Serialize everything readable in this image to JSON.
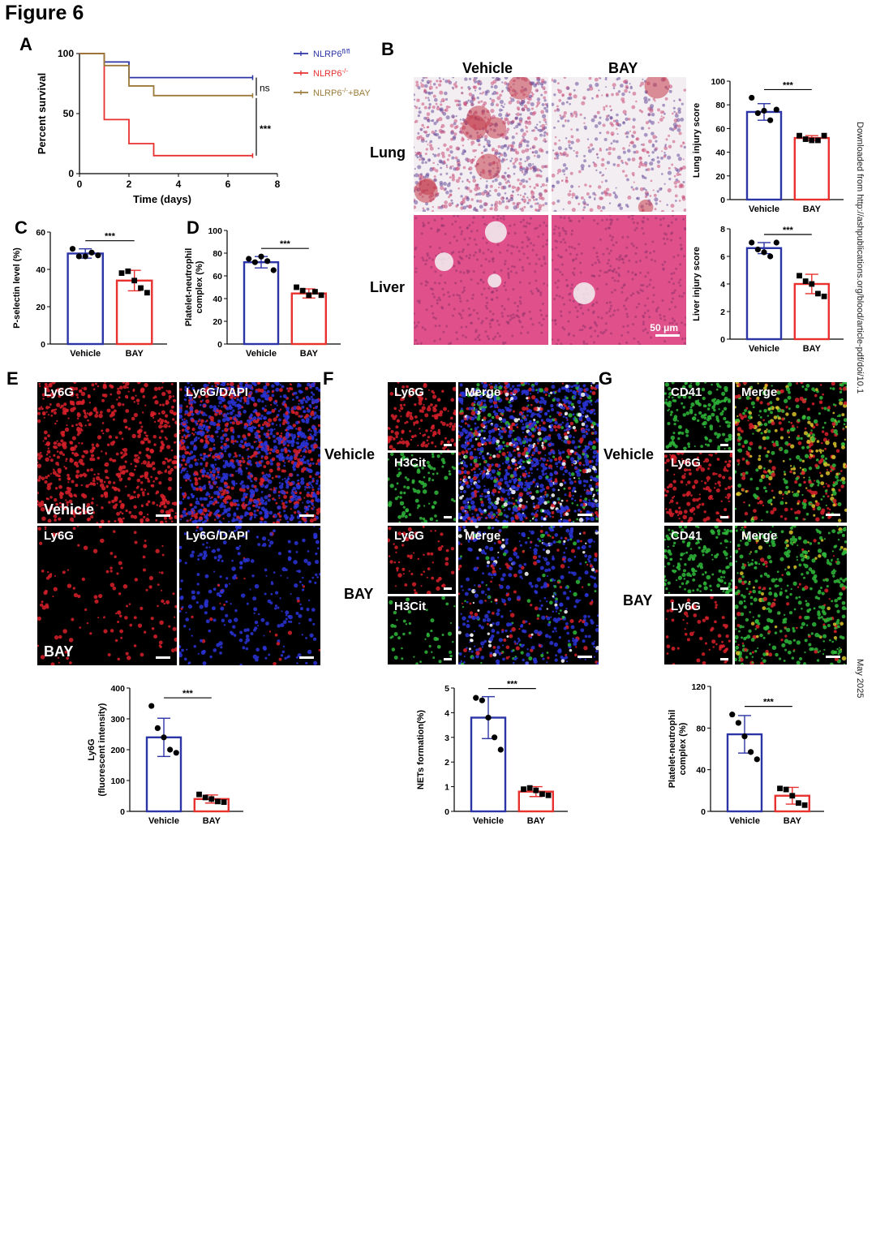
{
  "figure_title": "Figure 6",
  "side_note": "Downloaded from http://ashpublications.org/blood/article-pdf/doi/10.1",
  "side_date": "May 2025",
  "panel_letters": [
    "A",
    "B",
    "C",
    "D",
    "E",
    "F",
    "G"
  ],
  "row_labels": {
    "b_vehicle": "Vehicle",
    "b_bay": "BAY",
    "lung": "Lung",
    "liver": "Liver",
    "f_vehicle": "Vehicle",
    "f_bay": "BAY",
    "g_vehicle": "Vehicle",
    "g_bay": "BAY"
  },
  "micrographs": {
    "scale_label": "50 μm",
    "E": [
      {
        "tl": "Ly6G",
        "bl": "Vehicle"
      },
      {
        "tl": "Ly6G/DAPI"
      },
      {
        "tl": "Ly6G",
        "bl": "BAY"
      },
      {
        "tl": "Ly6G/DAPI"
      }
    ],
    "F": [
      "Ly6G",
      "H3Cit",
      "Merge",
      "Ly6G",
      "H3Cit",
      "Merge"
    ],
    "G": [
      "CD41",
      "Ly6G",
      "Merge",
      "CD41",
      "Ly6G",
      "Merge"
    ]
  },
  "colors": {
    "blue": "#2b35a6",
    "red": "#e8312f",
    "brown": "#9b7a3a",
    "ly6g": "#d8202a",
    "dapi": "#2a34d8",
    "green": "#2fb83a",
    "yellow": "#d9c32a"
  },
  "chart_data": [
    {
      "panel": "A",
      "type": "line",
      "xlabel": "Time (days)",
      "ylabel": "Percent survival",
      "xlim": [
        0,
        8
      ],
      "ylim": [
        0,
        100
      ],
      "xticks": [
        0,
        2,
        4,
        6,
        8
      ],
      "yticks": [
        0,
        50,
        100
      ],
      "series": [
        {
          "name": "NLRP6fl/fl",
          "name_base": "NLRP6",
          "name_sup": "fl/fl",
          "color": "#2b35a6",
          "x": [
            0,
            1,
            1,
            2,
            2,
            7
          ],
          "y": [
            100,
            100,
            93,
            93,
            80,
            80
          ]
        },
        {
          "name": "NLRP6-/-",
          "name_base": "NLRP6",
          "name_sup": "-/-",
          "color": "#e8312f",
          "x": [
            0,
            1,
            1,
            2,
            2,
            3,
            3,
            7
          ],
          "y": [
            100,
            100,
            45,
            45,
            25,
            25,
            15,
            15
          ]
        },
        {
          "name": "NLRP6-/-+BAY",
          "name_base": "NLRP6",
          "name_sup": "-/-",
          "name_suffix": "+BAY",
          "color": "#9b7a3a",
          "x": [
            0,
            1,
            1,
            2,
            2,
            3,
            3,
            7
          ],
          "y": [
            100,
            100,
            90,
            90,
            73,
            73,
            65,
            65
          ]
        }
      ],
      "annotations": [
        "ns",
        "***"
      ],
      "legend": "top-right"
    },
    {
      "panel": "B-lung",
      "type": "bar",
      "ylabel": "Lung injury score",
      "categories": [
        "Vehicle",
        "BAY"
      ],
      "values": [
        74,
        52
      ],
      "errors": [
        7,
        2
      ],
      "points": [
        [
          86,
          73,
          75,
          67,
          76
        ],
        [
          54,
          51,
          50,
          50,
          54
        ]
      ],
      "ylim": [
        0,
        100
      ],
      "yticks": [
        0,
        20,
        40,
        60,
        80,
        100
      ],
      "significance": "***"
    },
    {
      "panel": "B-liver",
      "type": "bar",
      "ylabel": "Liver injury score",
      "categories": [
        "Vehicle",
        "BAY"
      ],
      "values": [
        6.6,
        4.0
      ],
      "errors": [
        0.4,
        0.7
      ],
      "points": [
        [
          7.0,
          6.5,
          6.3,
          6.0,
          7.0
        ],
        [
          4.6,
          4.2,
          4.0,
          3.3,
          3.1
        ]
      ],
      "ylim": [
        0,
        8
      ],
      "yticks": [
        0,
        2,
        4,
        6,
        8
      ],
      "significance": "***"
    },
    {
      "panel": "C",
      "type": "bar",
      "ylabel": "P-selectin level (%)",
      "categories": [
        "Vehicle",
        "BAY"
      ],
      "values": [
        48.5,
        34
      ],
      "errors": [
        2.5,
        5.5
      ],
      "points": [
        [
          51,
          47,
          47,
          49,
          47.5
        ],
        [
          38,
          39,
          34,
          30,
          27.5
        ]
      ],
      "ylim": [
        0,
        60
      ],
      "yticks": [
        0,
        20,
        40,
        60
      ],
      "significance": "***"
    },
    {
      "panel": "D",
      "type": "bar",
      "ylabel_lines": [
        "Platelet-neutrophil",
        "complex (%)"
      ],
      "categories": [
        "Vehicle",
        "BAY"
      ],
      "values": [
        72,
        44.5
      ],
      "errors": [
        5,
        4
      ],
      "points": [
        [
          75,
          72,
          77,
          73,
          65
        ],
        [
          50,
          47,
          43,
          46,
          43
        ]
      ],
      "ylim": [
        0,
        100
      ],
      "yticks": [
        0,
        20,
        40,
        60,
        80,
        100
      ],
      "significance": "***"
    },
    {
      "panel": "E-quant",
      "type": "bar",
      "ylabel_lines": [
        "Ly6G",
        "(fluorescent intensity)"
      ],
      "categories": [
        "Vehicle",
        "BAY"
      ],
      "values": [
        240,
        40
      ],
      "errors": [
        62,
        13
      ],
      "points": [
        [
          342,
          270,
          240,
          200,
          190
        ],
        [
          55,
          45,
          40,
          32,
          30
        ]
      ],
      "ylim": [
        0,
        400
      ],
      "yticks": [
        0,
        100,
        200,
        300,
        400
      ],
      "significance": "***"
    },
    {
      "panel": "F-quant",
      "type": "bar",
      "ylabel": "NETs formation(%)",
      "categories": [
        "Vehicle",
        "BAY"
      ],
      "values": [
        3.8,
        0.8
      ],
      "errors": [
        0.85,
        0.2
      ],
      "points": [
        [
          4.6,
          4.5,
          3.8,
          3.0,
          2.5
        ],
        [
          0.9,
          0.95,
          0.85,
          0.7,
          0.65
        ]
      ],
      "ylim": [
        0,
        5
      ],
      "yticks": [
        0,
        1,
        2,
        3,
        4,
        5
      ],
      "significance": "***"
    },
    {
      "panel": "G-quant",
      "type": "bar",
      "ylabel_lines": [
        "Platelet-neutrophil",
        "complex (%)"
      ],
      "categories": [
        "Vehicle",
        "BAY"
      ],
      "values": [
        74,
        15
      ],
      "errors": [
        18,
        8
      ],
      "points": [
        [
          93,
          85,
          72,
          57,
          50
        ],
        [
          22,
          21,
          15,
          8,
          6
        ]
      ],
      "ylim": [
        0,
        120
      ],
      "yticks": [
        0,
        40,
        80,
        120
      ],
      "significance": "***"
    }
  ]
}
